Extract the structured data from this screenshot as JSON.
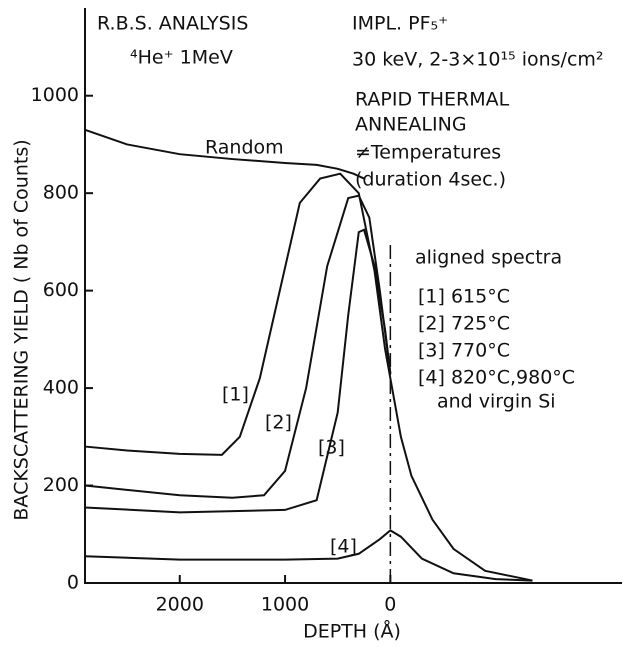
{
  "chart_data": {
    "type": "line",
    "xlabel": "DEPTH (Å)",
    "ylabel": "BACKSCATTERING  YIELD ( Nb of Counts)",
    "xlim": [
      2900,
      -2200
    ],
    "ylim": [
      0,
      1180
    ],
    "xticks": [
      2000,
      1000,
      0
    ],
    "yticks": [
      0,
      200,
      400,
      600,
      800,
      1000
    ],
    "color": "#111111",
    "series": [
      {
        "name": "Random",
        "x": [
          2900,
          2500,
          2000,
          1500,
          1000,
          700,
          500,
          350,
          250
        ],
        "values": [
          930,
          900,
          880,
          870,
          862,
          858,
          850,
          840,
          830
        ]
      },
      {
        "name": "[1]",
        "x": [
          2900,
          2500,
          2000,
          1600,
          1430,
          1240,
          1050,
          860,
          667,
          476,
          300,
          150,
          50,
          0,
          -100,
          -200,
          -400,
          -600,
          -900,
          -1350
        ],
        "values": [
          280,
          272,
          265,
          263,
          300,
          420,
          600,
          780,
          830,
          840,
          800,
          640,
          480,
          420,
          300,
          220,
          130,
          70,
          25,
          5
        ]
      },
      {
        "name": "[2]",
        "x": [
          2900,
          2000,
          1500,
          1200,
          1000,
          800,
          600,
          400,
          300,
          200,
          100,
          0
        ],
        "values": [
          200,
          180,
          175,
          180,
          230,
          400,
          650,
          790,
          795,
          750,
          600,
          430
        ]
      },
      {
        "name": "[3]",
        "x": [
          2900,
          2000,
          1000,
          700,
          500,
          400,
          300,
          250,
          150,
          50,
          0
        ],
        "values": [
          155,
          145,
          150,
          170,
          350,
          550,
          720,
          725,
          650,
          520,
          430
        ]
      },
      {
        "name": "[4]",
        "x": [
          2900,
          2000,
          1000,
          500,
          300,
          100,
          0,
          -100,
          -300,
          -600,
          -1000,
          -1350
        ],
        "values": [
          55,
          48,
          48,
          50,
          60,
          90,
          108,
          95,
          50,
          20,
          8,
          5
        ]
      }
    ],
    "annotations": [
      "R.B.S. ANALYSIS",
      "⁴He⁺  1MeV",
      "IMPL. PF₅⁺",
      "30 keV, 2-3×10¹⁵ ions/cm²",
      "RAPID THERMAL",
      "ANNEALING",
      "≠Temperatures",
      "(duration 4sec.)",
      "aligned spectra",
      "[1] 615°C",
      "[2] 725°C",
      "[3] 770°C",
      "[4] 820°C,980°C",
      "and virgin Si"
    ]
  }
}
